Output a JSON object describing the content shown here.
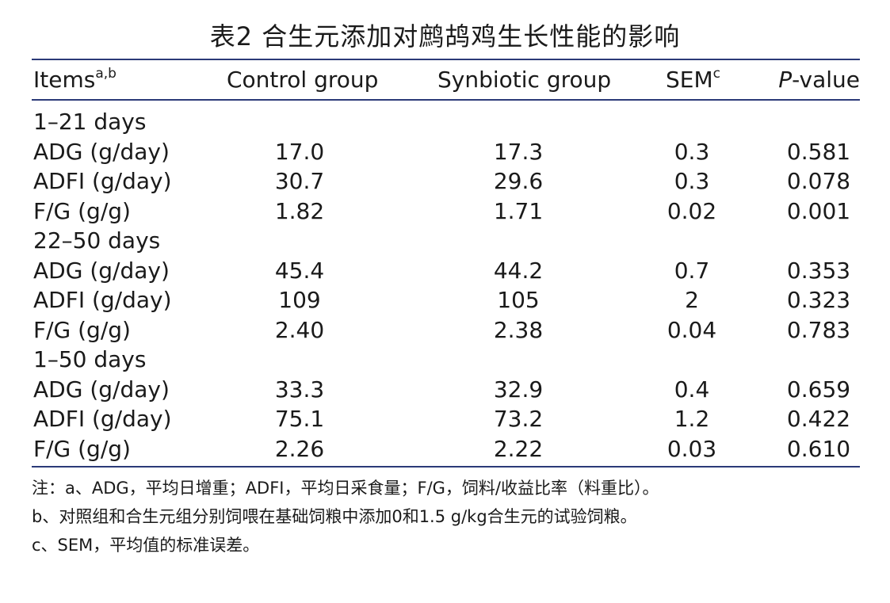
{
  "title": "表2 合生元添加对鹧鸪鸡生长性能的影响",
  "header": {
    "items": "Items",
    "items_sup": "a,b",
    "control": "Control group",
    "synbiotic": "Synbiotic group",
    "sem": "SEM",
    "sem_sup": "c",
    "p_italic": "P",
    "p_rest": "-value"
  },
  "rows": [
    {
      "label": "1–21 days",
      "control": "",
      "synbiotic": "",
      "sem": "",
      "p": ""
    },
    {
      "label": "ADG (g/day)",
      "control": "17.0",
      "synbiotic": "17.3",
      "sem": "0.3",
      "p": "0.581"
    },
    {
      "label": "ADFI (g/day)",
      "control": "30.7",
      "synbiotic": "29.6",
      "sem": "0.3",
      "p": "0.078"
    },
    {
      "label": "F/G (g/g)",
      "control": "1.82",
      "synbiotic": "1.71",
      "sem": "0.02",
      "p": "0.001"
    },
    {
      "label": "22–50 days",
      "control": "",
      "synbiotic": "",
      "sem": "",
      "p": ""
    },
    {
      "label": "ADG (g/day)",
      "control": "45.4",
      "synbiotic": "44.2",
      "sem": "0.7",
      "p": "0.353"
    },
    {
      "label": "ADFI (g/day)",
      "control": "109",
      "synbiotic": "105",
      "sem": "2",
      "p": "0.323"
    },
    {
      "label": "F/G (g/g)",
      "control": "2.40",
      "synbiotic": "2.38",
      "sem": "0.04",
      "p": "0.783"
    },
    {
      "label": "1–50 days",
      "control": "",
      "synbiotic": "",
      "sem": "",
      "p": ""
    },
    {
      "label": "ADG (g/day)",
      "control": "33.3",
      "synbiotic": "32.9",
      "sem": "0.4",
      "p": "0.659"
    },
    {
      "label": "ADFI (g/day)",
      "control": "75.1",
      "synbiotic": "73.2",
      "sem": "1.2",
      "p": "0.422"
    },
    {
      "label": "F/G (g/g)",
      "control": "2.26",
      "synbiotic": "2.22",
      "sem": "0.03",
      "p": "0.610"
    }
  ],
  "notes": [
    "注：a、ADG，平均日增重；ADFI，平均日采食量；F/G，饲料/收益比率（料重比）。",
    "b、对照组和合生元组分别饲喂在基础饲粮中添加0和1.5 g/kg合生元的试验饲粮。",
    "c、SEM，平均值的标准误差。"
  ],
  "colors": {
    "rule": "#2b3a78",
    "text": "#1a1a1a"
  }
}
